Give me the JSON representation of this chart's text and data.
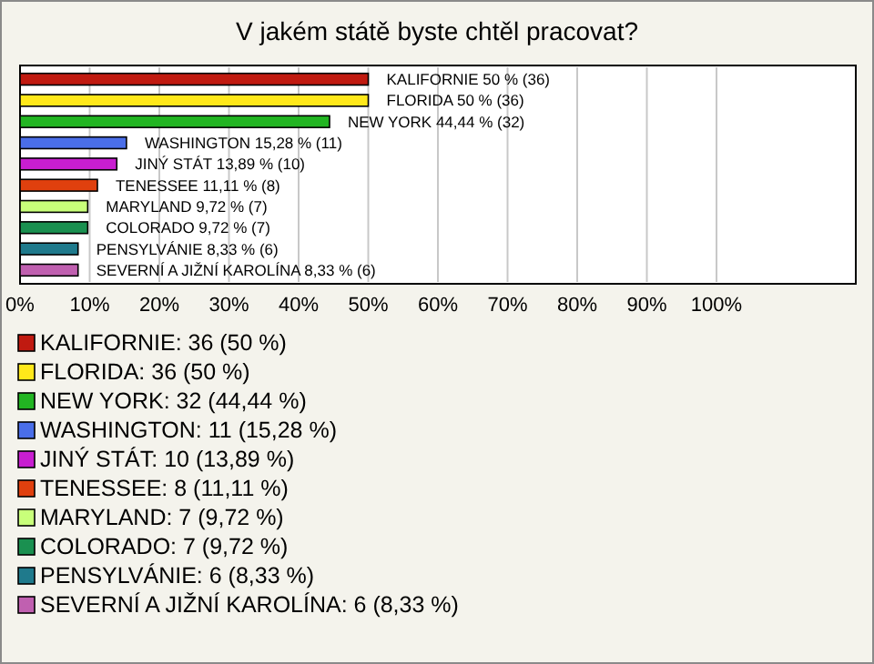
{
  "chart_data": {
    "type": "bar",
    "orientation": "horizontal",
    "title": "V jakém státě byste chtěl pracovat?",
    "categories": [
      "KALIFORNIE",
      "FLORIDA",
      "NEW YORK",
      "WASHINGTON",
      "JINÝ STÁT",
      "TENESSEE",
      "MARYLAND",
      "COLORADO",
      "PENSYLVÁNIE",
      "SEVERNÍ A JIŽNÍ KAROLÍNA"
    ],
    "values": [
      50,
      50,
      44.44,
      15.28,
      13.89,
      11.11,
      9.72,
      9.72,
      8.33,
      8.33
    ],
    "colors": [
      "#c01a10",
      "#ffe81a",
      "#22b522",
      "#4a6ee8",
      "#c81ed0",
      "#e0400e",
      "#c8ff7a",
      "#1a9050",
      "#1f7a8c",
      "#c060b0"
    ],
    "value_labels": [
      "50 % (36)",
      "50 % (36)",
      "44,44 % (32)",
      "15,28 % (11)",
      "13,89 % (10)",
      "11,11 % (8)",
      "9,72 % (7)",
      "9,72 % (7)",
      "8,33 % (6)",
      "8,33 % (6)"
    ],
    "xlim": [
      0,
      120
    ],
    "xticks": [
      {
        "value": 0,
        "label": "0%"
      },
      {
        "value": 10,
        "label": "10%"
      },
      {
        "value": 20,
        "label": "20%"
      },
      {
        "value": 30,
        "label": "30%"
      },
      {
        "value": 40,
        "label": "40%"
      },
      {
        "value": 50,
        "label": "50%"
      },
      {
        "value": 60,
        "label": "60%"
      },
      {
        "value": 70,
        "label": "70%"
      },
      {
        "value": 80,
        "label": "80%"
      },
      {
        "value": 90,
        "label": "90%"
      },
      {
        "value": 100,
        "label": "100%"
      }
    ],
    "grid": "x",
    "annotations": [
      "KALIFORNIE: 36 (50 %)",
      "FLORIDA: 36 (50 %)",
      "NEW YORK: 32 (44,44 %)",
      "WASHINGTON: 11 (15,28 %)",
      "JINÝ STÁT: 10 (13,89 %)",
      "TENESSEE: 8 (11,11 %)",
      "MARYLAND: 7 (9,72 %)",
      "COLORADO: 7 (9,72 %)",
      "PENSYLVÁNIE: 6 (8,33 %)",
      "SEVERNÍ A JIŽNÍ KAROLÍNA: 6 (8,33 %)"
    ]
  }
}
